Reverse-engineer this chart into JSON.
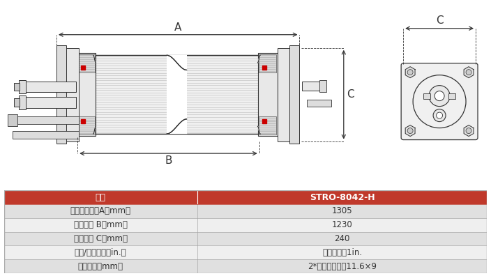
{
  "title_header": "型号",
  "model": "STRO-8042-H",
  "rows": [
    [
      "膜组件拉杆长A（mm）",
      "1305"
    ],
    [
      "法兰间距 B（mm）",
      "1230"
    ],
    [
      "法兰宽度 C（mm）",
      "240"
    ],
    [
      "进水/浓水接口（in.）",
      "卡箍式接口1in."
    ],
    [
      "产水接口（mm）",
      "2*软管快速接口11.6×9"
    ]
  ],
  "header_bg": "#c0392b",
  "header_fg": "#ffffff",
  "row_bg_odd": "#e0e0e0",
  "row_bg_even": "#efefef",
  "label_A": "A",
  "label_B": "B",
  "label_C": "C",
  "bg_color": "#ffffff",
  "line_color": "#555555",
  "dark_line": "#333333",
  "light_gray": "#cccccc",
  "mid_gray": "#999999"
}
